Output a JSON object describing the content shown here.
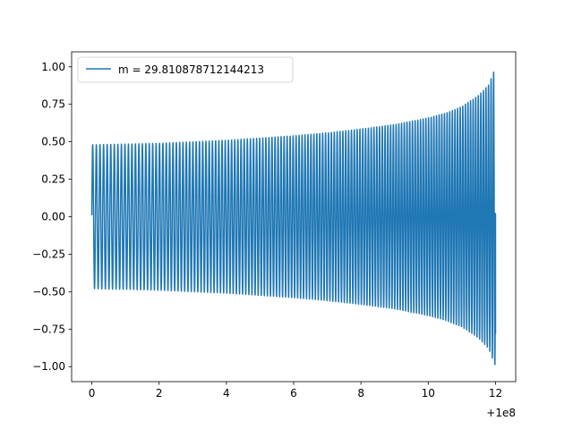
{
  "chart_data": {
    "type": "line",
    "title": "",
    "xlabel": "",
    "ylabel": "",
    "x_offset_text": "+1e8",
    "xlim": [
      -0.6,
      12.6
    ],
    "ylim": [
      -1.1,
      1.1
    ],
    "x_ticks": [
      0,
      2,
      4,
      6,
      8,
      10,
      12
    ],
    "x_tick_labels": [
      "0",
      "2",
      "4",
      "6",
      "8",
      "10",
      "12"
    ],
    "y_ticks": [
      -1.0,
      -0.75,
      -0.5,
      -0.25,
      0.0,
      0.25,
      0.5,
      0.75,
      1.0
    ],
    "y_tick_labels": [
      "−1.00",
      "−0.75",
      "−0.50",
      "−0.25",
      "0.00",
      "0.25",
      "0.50",
      "0.75",
      "1.00"
    ],
    "grid": false,
    "legend_position": "top-left",
    "series": [
      {
        "name": "m = 29.810878712144213",
        "color": "#1f77b4",
        "x_range": [
          0,
          12
        ],
        "envelope_x": [
          0,
          1,
          2,
          3,
          4,
          5,
          6,
          7,
          8,
          9,
          10,
          10.5,
          11,
          11.5,
          11.8,
          12
        ],
        "envelope_y": [
          0.48,
          0.485,
          0.49,
          0.5,
          0.51,
          0.525,
          0.54,
          0.56,
          0.585,
          0.615,
          0.66,
          0.69,
          0.735,
          0.81,
          0.88,
          1.0
        ],
        "start_value": 0.01,
        "cycles": 135
      }
    ]
  }
}
